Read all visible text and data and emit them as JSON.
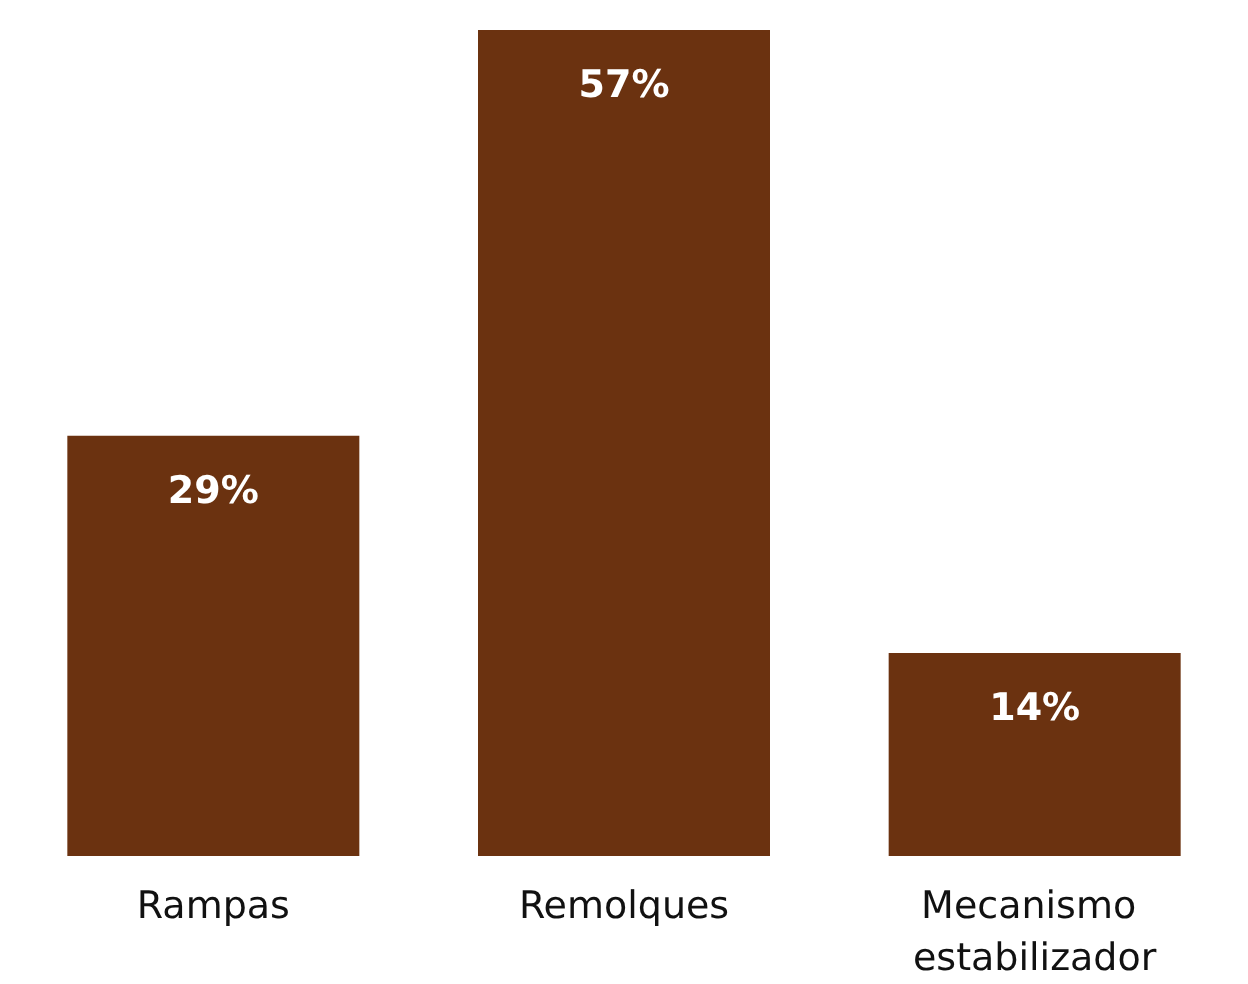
{
  "chart_data": {
    "type": "bar",
    "categories": [
      "Rampas",
      "Remolques",
      "Mecanismo estabilizador"
    ],
    "values": [
      29,
      57,
      14
    ],
    "value_labels": [
      "29%",
      "57%",
      "14%"
    ],
    "color": "#6b3210"
  }
}
